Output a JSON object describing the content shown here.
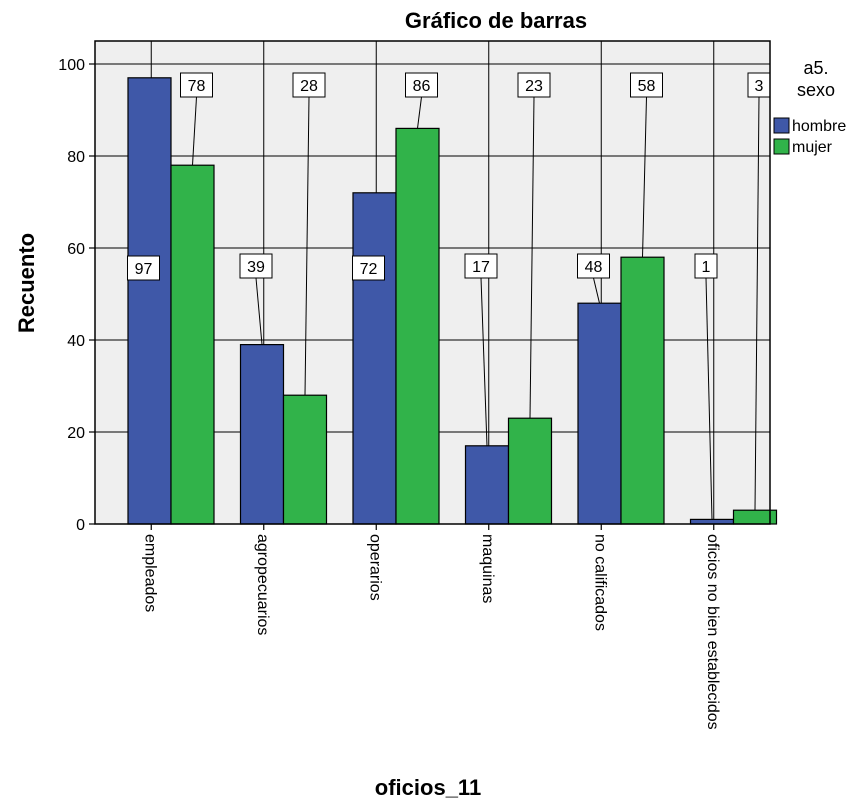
{
  "chart_data": {
    "type": "bar",
    "title": "Gráfico de barras",
    "xlabel": "oficios_11",
    "ylabel": "Recuento",
    "ylim": [
      0,
      105
    ],
    "yticks": [
      0,
      20,
      40,
      60,
      80,
      100
    ],
    "grid": true,
    "legend": {
      "title_lines": [
        "a5.",
        "sexo"
      ],
      "placement": "right"
    },
    "categories": [
      "empleados",
      "agropecuarios",
      "operarios",
      "maquinas",
      "no calificados",
      "oficios no bien establecidos"
    ],
    "series": [
      {
        "name": "hombre",
        "color": "#3f58a8",
        "values": [
          97,
          39,
          72,
          17,
          48,
          1
        ]
      },
      {
        "name": "mujer",
        "color": "#31b34a",
        "values": [
          78,
          28,
          86,
          23,
          58,
          3
        ]
      }
    ],
    "colors": {
      "plot_background": "#efefef",
      "frame": "#000000",
      "label_box": "#ffffff"
    }
  }
}
